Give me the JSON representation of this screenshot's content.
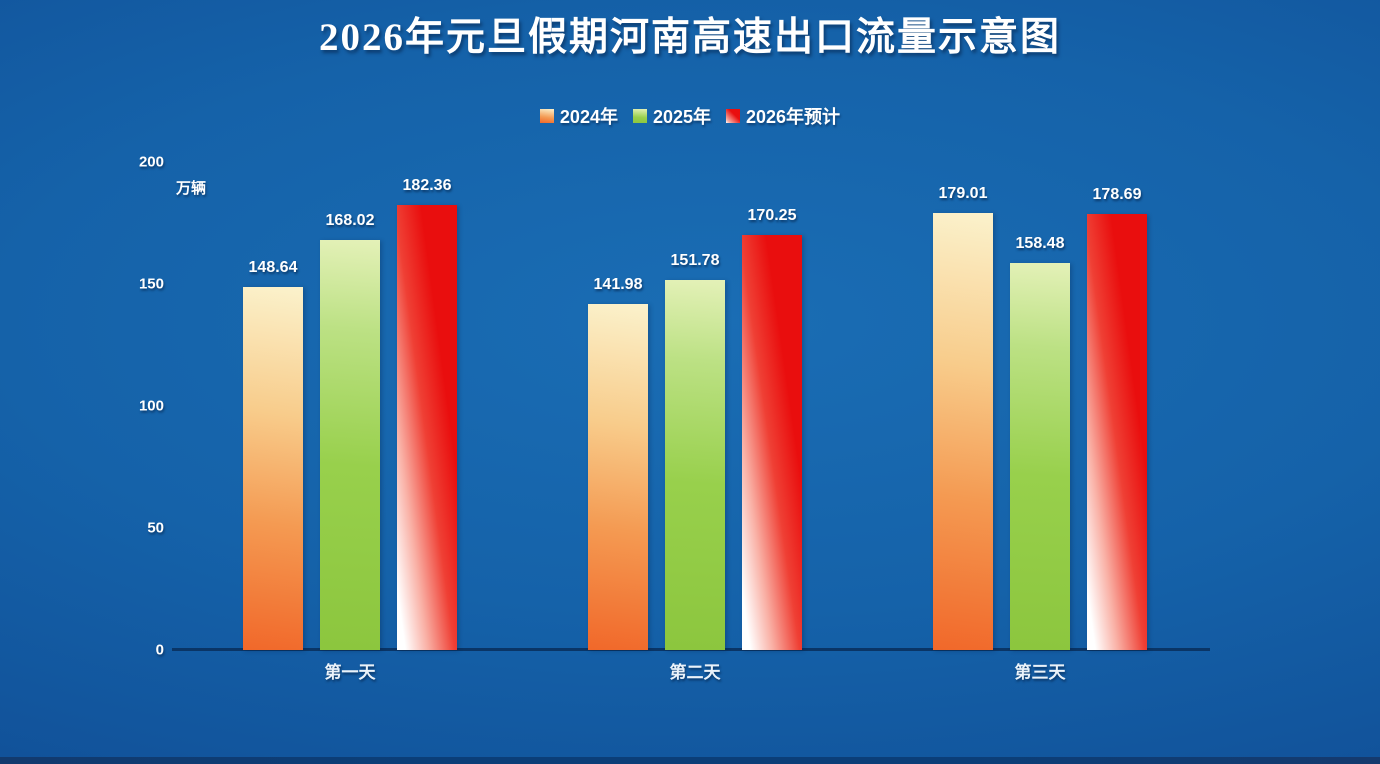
{
  "title": "2026年元旦假期河南高速出口流量示意图",
  "y_axis": {
    "unit_label": "万辆",
    "ticks": [
      0,
      50,
      100,
      150,
      200
    ]
  },
  "colors": {
    "background_center": "#1A6DB4",
    "background_edge": "#0D488A",
    "axis_line": "#0A3566",
    "series_2024": "#F1682A",
    "series_2025": "#8CC63E",
    "series_2026": "#E90E0E"
  },
  "chart_data": {
    "type": "bar",
    "title": "2026年元旦假期河南高速出口流量示意图",
    "categories": [
      "第一天",
      "第二天",
      "第三天"
    ],
    "series": [
      {
        "name": "2024年",
        "color": "#F1682A",
        "values": [
          148.64,
          141.98,
          179.01
        ]
      },
      {
        "name": "2025年",
        "color": "#8CC63E",
        "values": [
          168.02,
          151.78,
          158.48
        ]
      },
      {
        "name": "2026年预计",
        "color": "#E90E0E",
        "values": [
          182.36,
          170.25,
          178.69
        ]
      }
    ],
    "ylabel": "万辆",
    "ylim": [
      0,
      200
    ],
    "yticks": [
      0,
      50,
      100,
      150,
      200
    ],
    "legend_position": "top-center",
    "grid": false,
    "value_labels": true
  }
}
